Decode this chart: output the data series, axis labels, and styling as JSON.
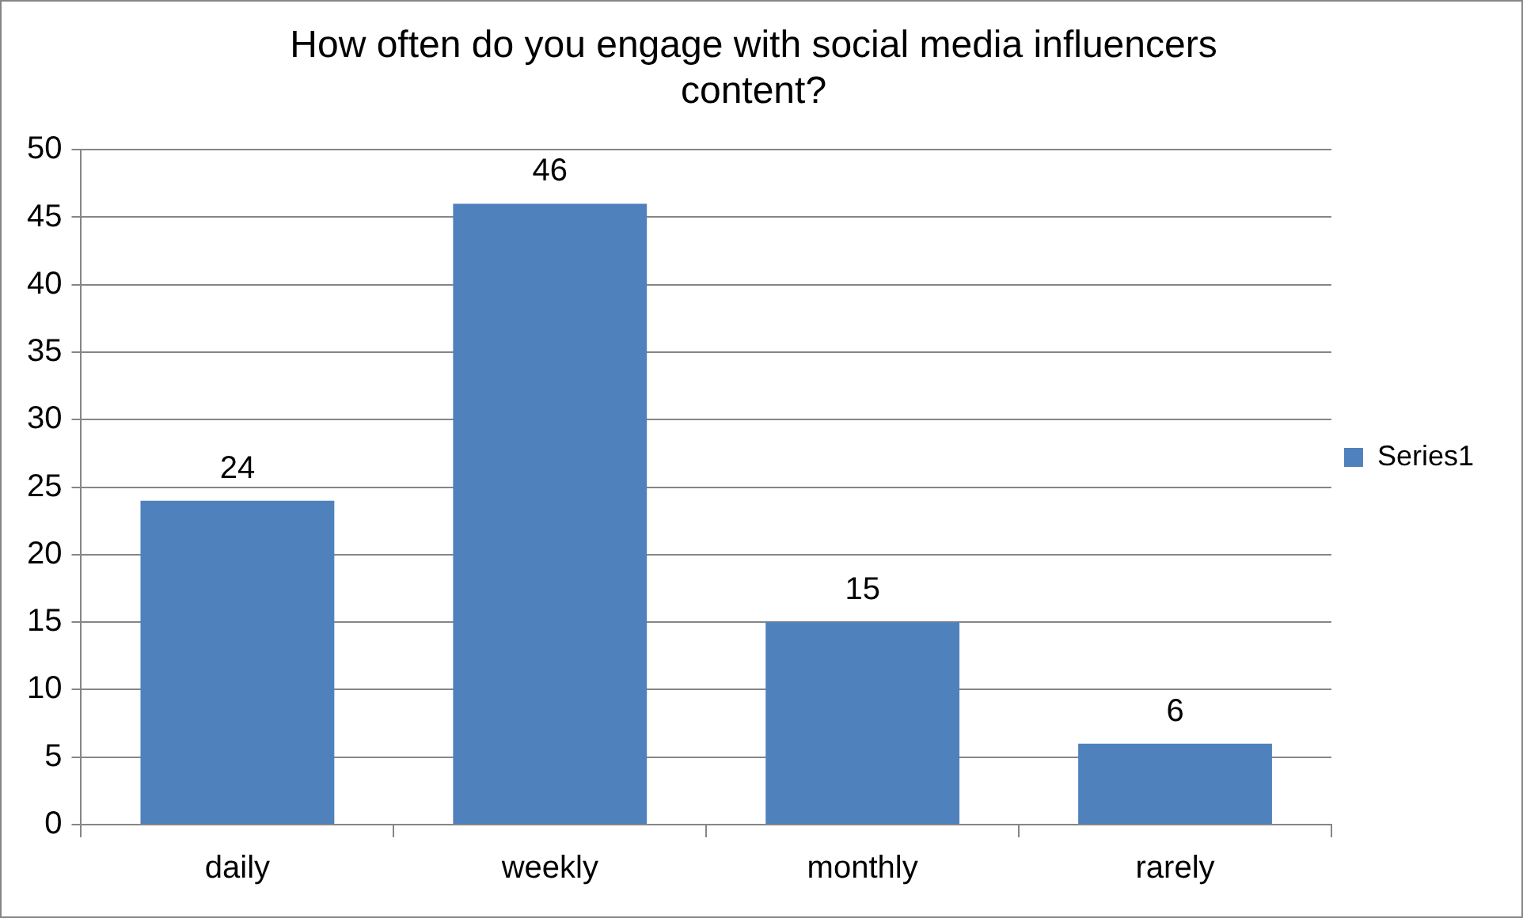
{
  "chart_data": {
    "type": "bar",
    "title": "How often do you engage with social media influencers content?",
    "categories": [
      "daily",
      "weekly",
      "monthly",
      "rarely"
    ],
    "series": [
      {
        "name": "Series1",
        "color": "#4f81bd",
        "values": [
          24,
          46,
          15,
          6
        ]
      }
    ],
    "ylim": [
      0,
      50
    ],
    "yticks": [
      0,
      5,
      10,
      15,
      20,
      25,
      30,
      35,
      40,
      45,
      50
    ],
    "grid": "y",
    "legend": "right",
    "data_labels": true
  }
}
